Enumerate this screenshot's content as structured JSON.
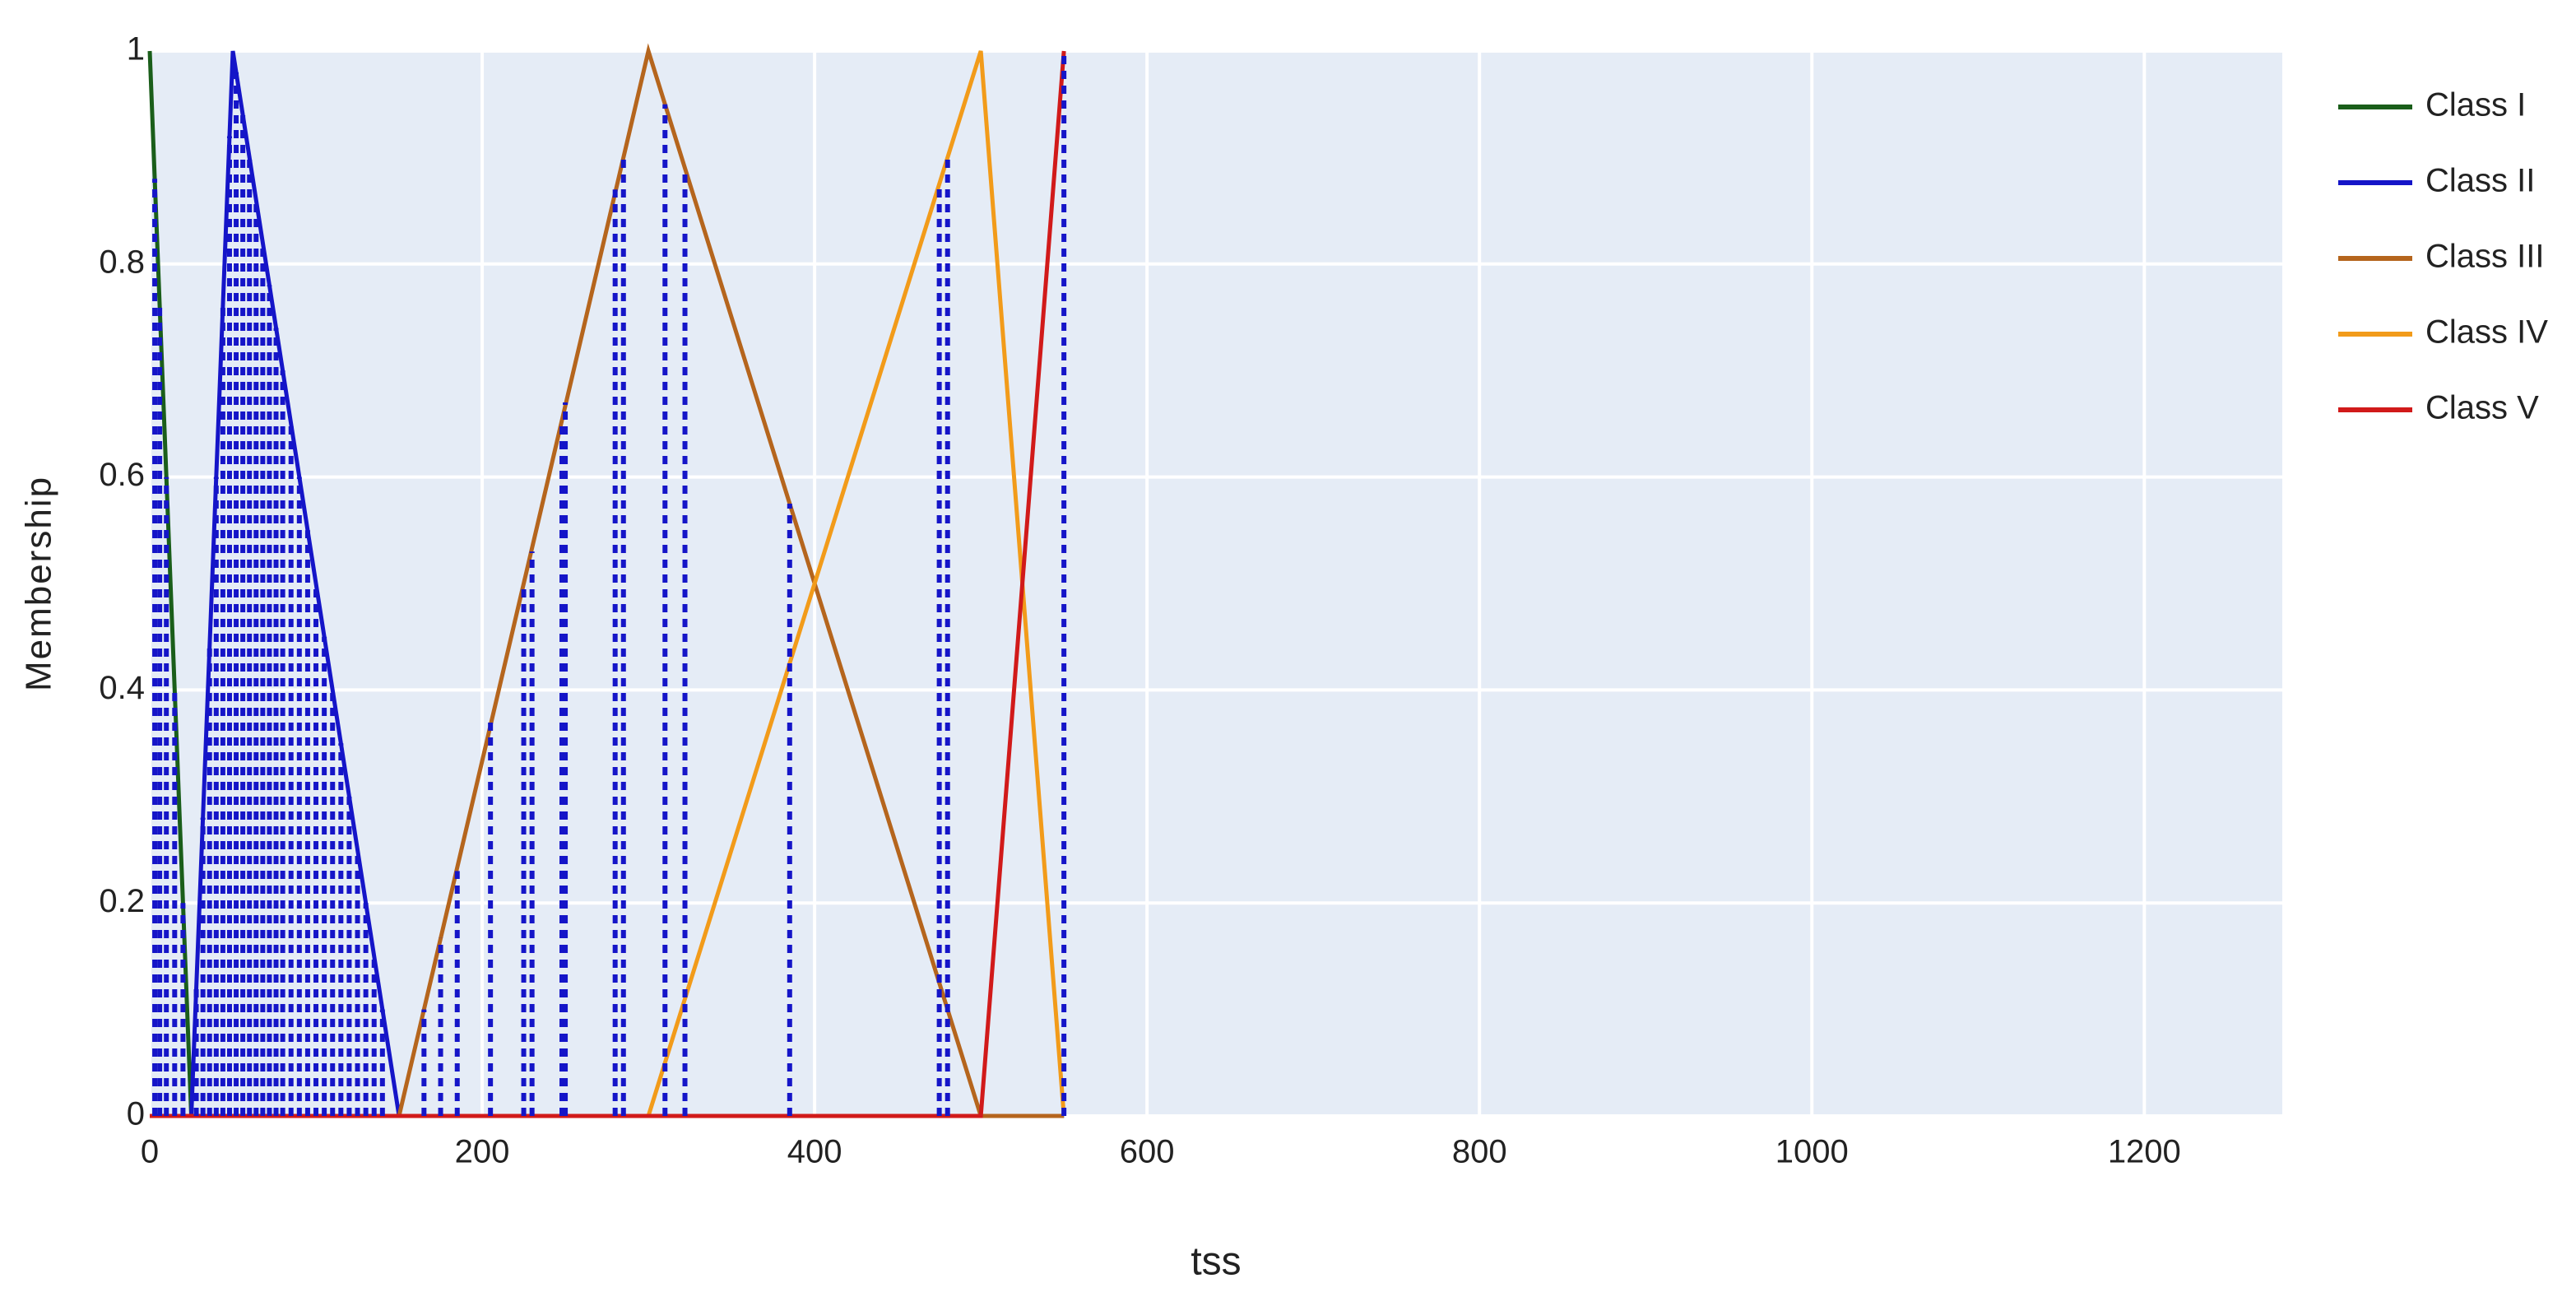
{
  "chart_data": {
    "type": "line",
    "x_label": "tss",
    "y_label": "Membership",
    "xlim": [
      0,
      1283
    ],
    "xticks": [
      0,
      200,
      400,
      600,
      800,
      1000,
      1200
    ],
    "ylim": [
      0,
      1
    ],
    "yticks": [
      0,
      0.2,
      0.4,
      0.6,
      0.8,
      1
    ],
    "grid": true,
    "legend": "right",
    "background": "#e5ecf6",
    "series": [
      {
        "name": "Class I",
        "color": "#1a5e1a",
        "x": [
          0,
          25,
          550
        ],
        "values": [
          1,
          0,
          0
        ]
      },
      {
        "name": "Class II",
        "color": "#1515c8",
        "x": [
          0,
          25,
          50,
          150,
          550
        ],
        "values": [
          0,
          0,
          1,
          0,
          0
        ]
      },
      {
        "name": "Class III",
        "color": "#b5651d",
        "x": [
          0,
          150,
          300,
          500,
          550
        ],
        "values": [
          0,
          0,
          1,
          0,
          0
        ]
      },
      {
        "name": "Class IV",
        "color": "#f29b1a",
        "x": [
          0,
          300,
          500,
          550
        ],
        "values": [
          0,
          0,
          1,
          0
        ]
      },
      {
        "name": "Class V",
        "color": "#d11a1a",
        "x": [
          0,
          500,
          550
        ],
        "values": [
          0,
          0,
          1
        ]
      }
    ],
    "drop_lines": {
      "color": "#1515c8",
      "x": [
        3,
        6,
        10,
        15,
        20,
        28,
        32,
        36,
        40,
        44,
        48,
        52,
        56,
        60,
        64,
        68,
        72,
        76,
        80,
        85,
        90,
        95,
        100,
        105,
        110,
        115,
        120,
        125,
        130,
        135,
        140,
        165,
        175,
        185,
        205,
        225,
        230,
        248,
        250,
        280,
        285,
        310,
        322,
        385,
        475,
        480,
        550
      ],
      "values": [
        0.88,
        0.76,
        0.6,
        0.4,
        0.2,
        0.12,
        0.28,
        0.44,
        0.6,
        0.76,
        0.92,
        0.98,
        0.94,
        0.9,
        0.86,
        0.82,
        0.78,
        0.74,
        0.7,
        0.65,
        0.6,
        0.55,
        0.5,
        0.45,
        0.4,
        0.35,
        0.3,
        0.25,
        0.2,
        0.15,
        0.1,
        0.1,
        0.167,
        0.23,
        0.37,
        0.5,
        0.53,
        0.65,
        0.67,
        0.87,
        0.9,
        0.95,
        0.89,
        0.575,
        0.875,
        0.9,
        1
      ]
    }
  }
}
